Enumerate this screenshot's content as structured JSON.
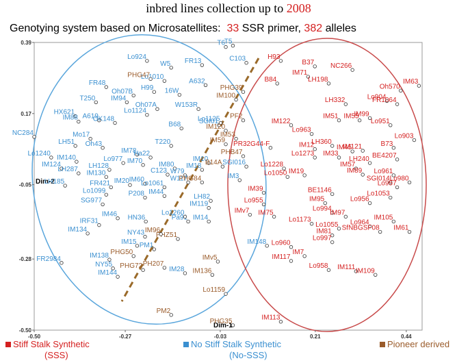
{
  "chart_data": {
    "type": "scatter",
    "title": [
      "inbred lines collection up to ",
      "2008"
    ],
    "subtitle": [
      "Genotying system based on Microsatellites:  ",
      "33",
      " SSR primer, ",
      "382",
      " alleles"
    ],
    "x_label": "Dim-1",
    "y_label": "Dim-2",
    "xlim": [
      -0.5,
      0.48
    ],
    "ylim": [
      -0.5,
      0.39
    ],
    "xticks": [
      {
        "value": -0.5,
        "label": "-0.50"
      },
      -0.27,
      -0.03,
      0.21,
      0.44
    ],
    "yticks": [
      0.39,
      0.17,
      -0.05,
      -0.28,
      {
        "value": -0.5,
        "label": "-0.50"
      }
    ],
    "series": [
      {
        "name": "Stiff Stalk Synthetic",
        "abbreviation": "(SSS)",
        "color": "#d42020",
        "labels": [
          "H93",
          "B37",
          "NC266",
          "IM71",
          "LH198",
          "B84",
          "IM63",
          "Oh570",
          "Lo904",
          "FR1064",
          "LH332",
          "IM99",
          "IM55",
          "IM51",
          "Lo951",
          "IM122",
          "Lo963",
          "Lo903",
          "B73",
          "PR32G44-F",
          "LH360",
          "IM45",
          "IM12",
          "Lo1273",
          "IM33",
          "IM121",
          "BE4207",
          "LH240",
          "Lo1228",
          "Lo1050",
          "IM19",
          "IM57",
          "IM89",
          "Lo961",
          "SGI014",
          "Lo980",
          "Lo957",
          "BE1146",
          "IM39",
          "Lo955",
          "IMv7",
          "IM75",
          "Lo1053",
          "Lo956",
          "IM95",
          "Lo994",
          "IM97",
          "Lo1173",
          "Lo1055",
          "Lo964",
          "IM105",
          "IM61",
          "SfNBGSF08",
          "IM81",
          "Lo997",
          "Lo960",
          "IM7",
          "IM117",
          "Lo958",
          "IM111",
          "IM109",
          "IM113"
        ],
        "x": [
          0.123,
          0.209,
          0.304,
          0.192,
          0.244,
          0.114,
          0.472,
          0.426,
          0.391,
          0.417,
          0.287,
          0.348,
          0.322,
          0.27,
          0.4,
          0.149,
          0.201,
          0.46,
          0.408,
          0.097,
          0.253,
          0.304,
          0.209,
          0.209,
          0.27,
          0.33,
          0.417,
          0.348,
          0.131,
          0.14,
          0.183,
          0.313,
          0.33,
          0.408,
          0.4,
          0.448,
          0.417,
          0.253,
          0.08,
          0.08,
          0.045,
          0.106,
          0.4,
          0.348,
          0.235,
          0.253,
          0.287,
          0.201,
          0.27,
          0.348,
          0.408,
          0.448,
          0.374,
          0.253,
          0.253,
          0.149,
          0.183,
          0.149,
          0.244,
          0.313,
          0.362,
          0.123
        ],
        "y": [
          0.333,
          0.316,
          0.305,
          0.284,
          0.263,
          0.263,
          0.256,
          0.241,
          0.209,
          0.199,
          0.199,
          0.156,
          0.149,
          0.149,
          0.134,
          0.134,
          0.107,
          0.088,
          0.064,
          0.064,
          0.07,
          0.053,
          0.06,
          0.034,
          0.034,
          0.055,
          0.028,
          0.017,
          0.0,
          -0.026,
          -0.021,
          0.0,
          -0.019,
          -0.021,
          -0.043,
          -0.043,
          -0.058,
          -0.079,
          -0.075,
          -0.111,
          -0.143,
          -0.149,
          -0.09,
          -0.107,
          -0.107,
          -0.137,
          -0.149,
          -0.171,
          -0.186,
          -0.179,
          -0.164,
          -0.196,
          -0.196,
          -0.207,
          -0.228,
          -0.243,
          -0.271,
          -0.286,
          -0.314,
          -0.318,
          -0.329,
          -0.474
        ]
      },
      {
        "name": "No Stiff Stalk Synthetic",
        "abbreviation": "(No-SSS)",
        "color": "#3a8fd0",
        "labels": [
          "Lo924",
          "W5",
          "FR13",
          "T6",
          "T5",
          "C103",
          "A632",
          "Lo1010",
          "FR48",
          "H99",
          "16W",
          "Oh07B",
          "T250",
          "IM94",
          "W153R",
          "Oh07A",
          "HX621",
          "A619",
          "OK148",
          "NC284",
          "Lo1124",
          "B68",
          "SGI01",
          "IM88",
          "Mo17",
          "LH51",
          "Oh43",
          "Lo1240",
          "IM140",
          "IM124",
          "LH287",
          "LH185",
          "LH128",
          "IM130",
          "FR421",
          "Lo1099",
          "SG977",
          "IM20",
          "IM60",
          "Lo1061",
          "P208",
          "IM44",
          "IM70",
          "Lo977",
          "IM78",
          "C123",
          "IM80",
          "W79",
          "W117",
          "IM18",
          "IM10",
          "T220",
          "IM46",
          "IRF31",
          "HN36",
          "IM134",
          "NY43",
          "IM138",
          "NY55",
          "IM144",
          "FR2984",
          "Ha22",
          "IM119",
          "LH82",
          "IM14",
          "Pa91",
          "Lo1260",
          "IM28",
          "IM148",
          "SGI016",
          "IM3",
          "Lo1125",
          "PM1",
          "IM15"
        ],
        "x": [
          -0.215,
          -0.154,
          -0.076,
          -0.016,
          0.002,
          0.036,
          -0.067,
          -0.171,
          -0.318,
          -0.197,
          -0.133,
          -0.249,
          -0.344,
          -0.266,
          -0.085,
          -0.189,
          -0.396,
          -0.336,
          -0.296,
          -0.5,
          -0.215,
          -0.128,
          -0.033,
          -0.388,
          -0.358,
          -0.396,
          -0.327,
          -0.457,
          -0.393,
          -0.431,
          -0.388,
          -0.422,
          -0.31,
          -0.318,
          -0.306,
          -0.318,
          -0.327,
          -0.258,
          -0.22,
          -0.171,
          -0.22,
          -0.171,
          -0.225,
          -0.275,
          -0.24,
          -0.163,
          -0.145,
          -0.119,
          -0.111,
          -0.076,
          -0.059,
          -0.154,
          -0.289,
          -0.336,
          -0.218,
          -0.365,
          -0.22,
          -0.31,
          -0.301,
          -0.289,
          -0.431,
          -0.206,
          -0.059,
          -0.054,
          -0.059,
          -0.111,
          -0.119,
          -0.119,
          0.088,
          0.036,
          0.019,
          -0.029,
          -0.197,
          -0.24
        ],
        "y": [
          0.333,
          0.312,
          0.32,
          0.376,
          0.38,
          0.327,
          0.258,
          0.271,
          0.252,
          0.237,
          0.228,
          0.226,
          0.205,
          0.205,
          0.184,
          0.184,
          0.162,
          0.149,
          0.141,
          0.098,
          0.166,
          0.124,
          0.134,
          0.145,
          0.092,
          0.07,
          0.064,
          0.034,
          0.021,
          0.0,
          -0.015,
          -0.053,
          -0.004,
          -0.026,
          -0.058,
          -0.081,
          -0.111,
          -0.051,
          -0.047,
          -0.058,
          -0.09,
          -0.085,
          0.011,
          0.017,
          0.043,
          -0.019,
          0.0,
          -0.021,
          -0.043,
          -0.004,
          0.017,
          0.07,
          -0.154,
          -0.175,
          -0.164,
          -0.201,
          -0.211,
          -0.282,
          -0.309,
          -0.335,
          -0.292,
          0.034,
          -0.122,
          -0.1,
          -0.164,
          -0.164,
          -0.149,
          -0.324,
          -0.239,
          0.006,
          -0.036,
          0.141,
          -0.25,
          -0.239
        ]
      },
      {
        "name": "Pioneer derived",
        "color": "#9a5b2a",
        "labels": [
          "PHG47",
          "PHG39",
          "IM100",
          "PF2",
          "IM120",
          "IM53",
          "PHB47",
          "B14A",
          "IM59",
          "PHG84",
          "PHZ51",
          "PHG50",
          "PHG72",
          "PH207",
          "IM96",
          "IMv5",
          "IM136",
          "Lo1159",
          "PM2",
          "PHG35"
        ],
        "x": [
          -0.206,
          0.028,
          0.01,
          0.028,
          -0.016,
          0.01,
          0.028,
          -0.024,
          -0.016,
          -0.076,
          -0.137,
          -0.249,
          -0.225,
          -0.171,
          -0.18,
          -0.036,
          -0.05,
          -0.016,
          -0.154,
          0.002
        ],
        "y": [
          0.277,
          0.237,
          0.213,
          0.149,
          0.117,
          0.092,
          0.038,
          0.006,
          0.075,
          -0.043,
          -0.218,
          -0.271,
          -0.314,
          -0.307,
          -0.203,
          -0.288,
          -0.329,
          -0.388,
          -0.453,
          -0.485
        ]
      }
    ]
  }
}
